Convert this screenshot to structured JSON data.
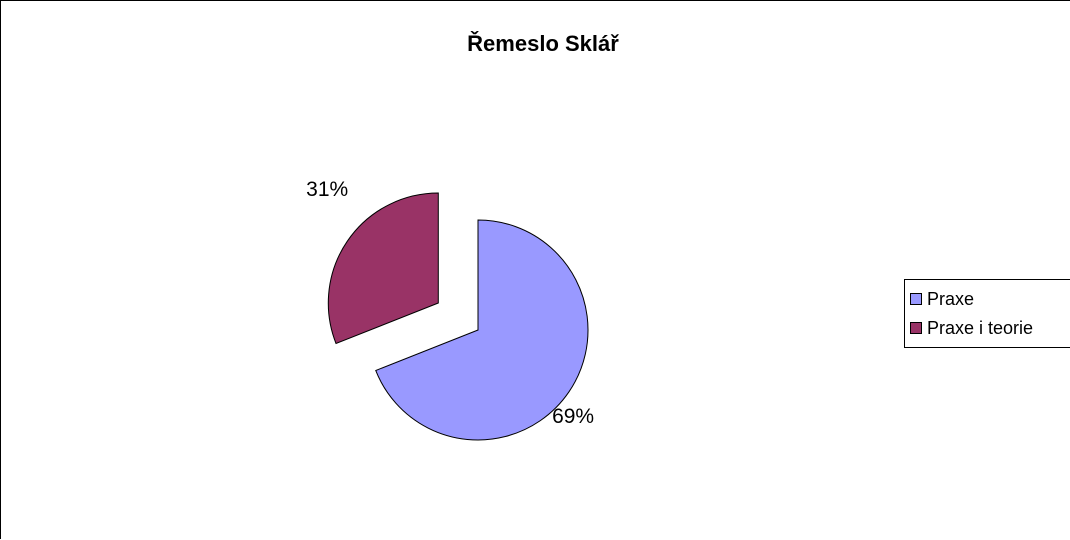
{
  "chart_data": {
    "type": "pie",
    "title": "Řemeslo Sklář",
    "slices": [
      {
        "name": "Praxe",
        "value": 69,
        "label": "69%",
        "color": "#9999ff"
      },
      {
        "name": "Praxe i teorie",
        "value": 31,
        "label": "31%",
        "color": "#993366"
      }
    ],
    "exploded": true,
    "legend_position": "right"
  }
}
